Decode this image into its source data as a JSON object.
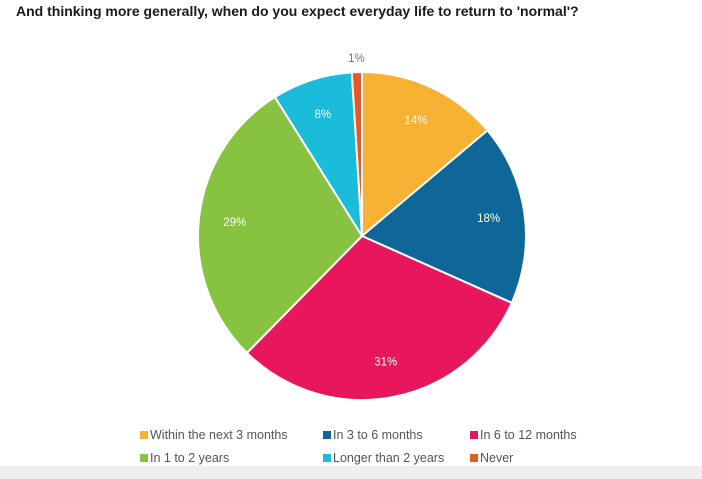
{
  "chart_data": {
    "type": "pie",
    "title": "And thinking more generally, when do you expect everyday life to return to 'normal'?",
    "categories": [
      "Within the next 3 months",
      "In 3 to 6 months",
      "In 6 to 12 months",
      "In 1 to 2 years",
      "Longer than 2 years",
      "Never"
    ],
    "values": [
      14,
      18,
      31,
      29,
      8,
      1
    ],
    "labels": [
      "14%",
      "18%",
      "31%",
      "29%",
      "8%",
      "1%"
    ],
    "colors": [
      "#f8b133",
      "#0f6699",
      "#e8175d",
      "#87c241",
      "#1bbcd9",
      "#e05a2a"
    ],
    "legend": "bottom"
  }
}
